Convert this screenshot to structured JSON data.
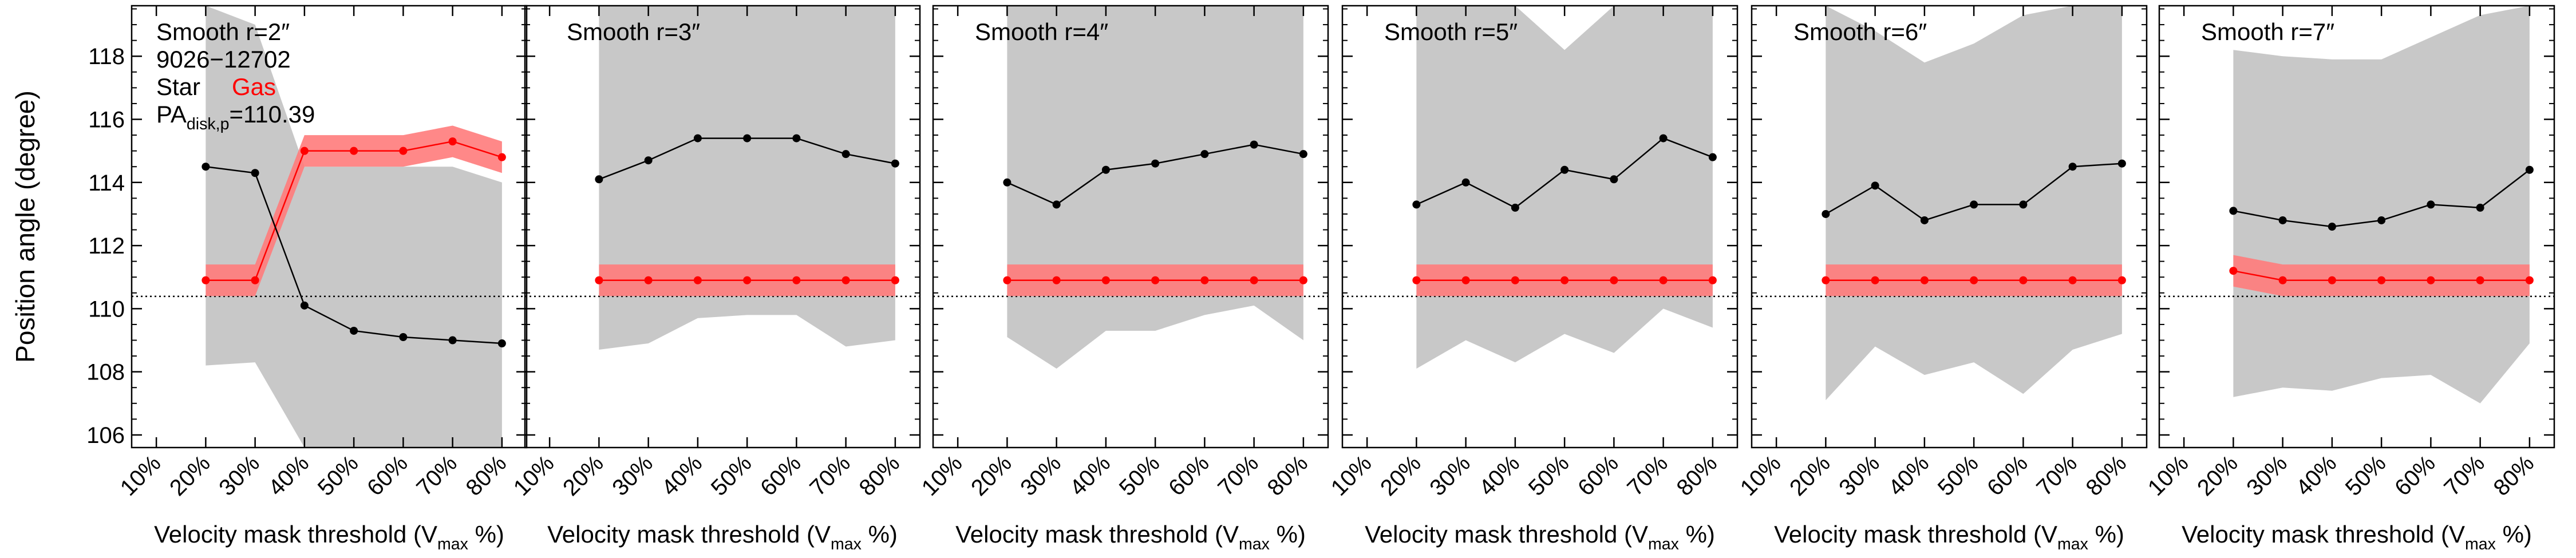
{
  "figure": {
    "ylabel": "Position angle (degree)",
    "xlabel_main": "Velocity mask threshold (V",
    "xlabel_sub": "max",
    "xlabel_tail": " %)",
    "legend": {
      "object_id": "9026−12702",
      "star_label": "Star",
      "gas_label": "Gas",
      "pa_main": "PA",
      "pa_sub": "disk,p",
      "pa_value": "=110.39"
    }
  },
  "colors": {
    "star": "#000000",
    "gas": "#ff0000",
    "gas_band": "#ff7b7b",
    "star_band": "#c8c8c8",
    "reference_line": "#000000"
  },
  "chart_data": {
    "type": "line",
    "shared_x_ticks": [
      "10%",
      "20%",
      "30%",
      "40%",
      "50%",
      "60%",
      "70%",
      "80%"
    ],
    "x_values": [
      20,
      30,
      40,
      50,
      60,
      70,
      80
    ],
    "xlim": [
      5,
      85
    ],
    "ylim": [
      105.6,
      119.6
    ],
    "y_ticks": [
      106,
      108,
      110,
      112,
      114,
      116,
      118
    ],
    "reference_pa": 110.39,
    "reference_line_style": "dotted",
    "grid": false,
    "panels": [
      {
        "title": "Smooth r=2″",
        "star": [
          114.5,
          114.3,
          110.1,
          109.3,
          109.1,
          109.0,
          108.9
        ],
        "star_band_upper": [
          119.6,
          119.0,
          114.5,
          114.5,
          114.5,
          114.5,
          114.0
        ],
        "star_band_lower": [
          108.2,
          108.3,
          105.6,
          105.6,
          105.6,
          105.6,
          105.6
        ],
        "gas": [
          110.9,
          110.9,
          115.0,
          115.0,
          115.0,
          115.3,
          114.8
        ],
        "gas_band": 0.5
      },
      {
        "title": "Smooth r=3″",
        "star": [
          114.1,
          114.7,
          115.4,
          115.4,
          115.4,
          114.9,
          114.6
        ],
        "star_band_upper": [
          119.6,
          119.6,
          119.6,
          119.6,
          119.6,
          119.6,
          119.6
        ],
        "star_band_lower": [
          108.7,
          108.9,
          109.7,
          109.8,
          109.8,
          108.8,
          109.0
        ],
        "gas": [
          110.9,
          110.9,
          110.9,
          110.9,
          110.9,
          110.9,
          110.9
        ],
        "gas_band": 0.5
      },
      {
        "title": "Smooth r=4″",
        "star": [
          114.0,
          113.3,
          114.4,
          114.6,
          114.9,
          115.2,
          114.9
        ],
        "star_band_upper": [
          119.6,
          119.6,
          119.6,
          119.6,
          119.6,
          119.6,
          119.6
        ],
        "star_band_lower": [
          109.1,
          108.1,
          109.3,
          109.3,
          109.8,
          110.1,
          109.0
        ],
        "gas": [
          110.9,
          110.9,
          110.9,
          110.9,
          110.9,
          110.9,
          110.9
        ],
        "gas_band": 0.5
      },
      {
        "title": "Smooth r=5″",
        "star": [
          113.3,
          114.0,
          113.2,
          114.4,
          114.1,
          115.4,
          114.8
        ],
        "star_band_upper": [
          119.6,
          119.6,
          119.6,
          118.2,
          119.6,
          119.6,
          119.6
        ],
        "star_band_lower": [
          108.1,
          109.0,
          108.3,
          109.2,
          108.6,
          110.0,
          109.4
        ],
        "gas": [
          110.9,
          110.9,
          110.9,
          110.9,
          110.9,
          110.9,
          110.9
        ],
        "gas_band": 0.5
      },
      {
        "title": "Smooth r=6″",
        "star": [
          113.0,
          113.9,
          112.8,
          113.3,
          113.3,
          114.5,
          114.6
        ],
        "star_band_upper": [
          119.6,
          118.8,
          117.8,
          118.4,
          119.3,
          119.6,
          119.6
        ],
        "star_band_lower": [
          107.1,
          108.8,
          107.9,
          108.3,
          107.3,
          108.7,
          109.2
        ],
        "gas": [
          110.9,
          110.9,
          110.9,
          110.9,
          110.9,
          110.9,
          110.9
        ],
        "gas_band": 0.5
      },
      {
        "title": "Smooth r=7″",
        "star": [
          113.1,
          112.8,
          112.6,
          112.8,
          113.3,
          113.2,
          114.4
        ],
        "star_band_upper": [
          118.2,
          118.0,
          117.9,
          117.9,
          118.6,
          119.3,
          119.6
        ],
        "star_band_lower": [
          107.2,
          107.5,
          107.4,
          107.8,
          107.9,
          107.0,
          108.9
        ],
        "gas": [
          111.2,
          110.9,
          110.9,
          110.9,
          110.9,
          110.9,
          110.9
        ],
        "gas_band": 0.5
      }
    ]
  }
}
